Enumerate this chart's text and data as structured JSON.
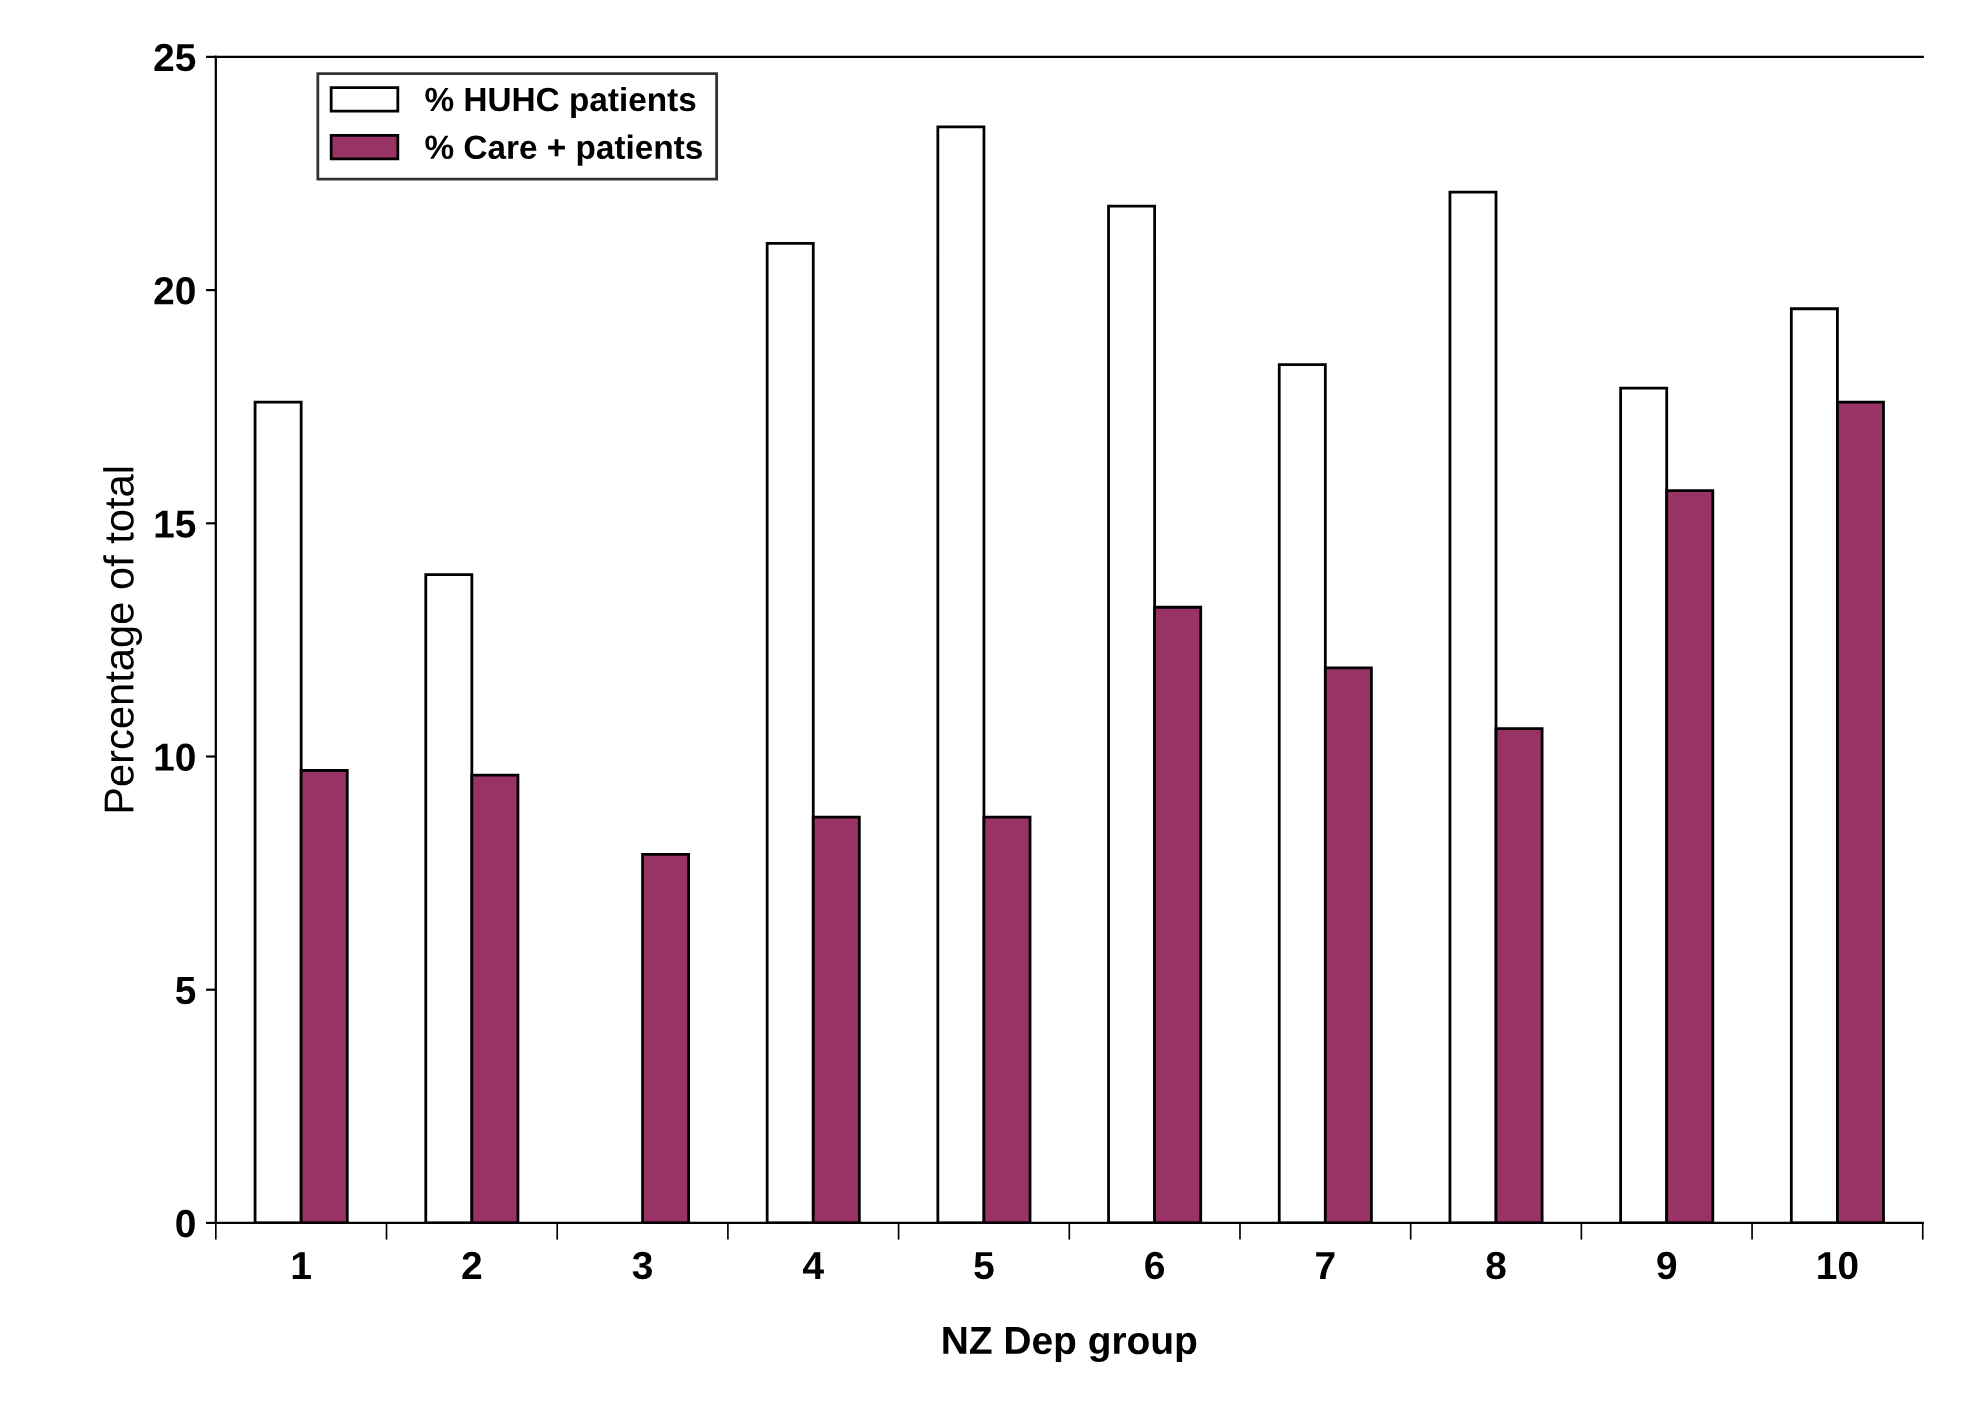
{
  "chart_data": {
    "type": "bar",
    "xlabel": "NZ Dep group",
    "ylabel": "Percentage of total",
    "categories": [
      "1",
      "2",
      "3",
      "4",
      "5",
      "6",
      "7",
      "8",
      "9",
      "10"
    ],
    "series": [
      {
        "name": "% HUHC patients",
        "color": "#ffffff",
        "values": [
          17.6,
          13.9,
          null,
          21.0,
          23.5,
          21.8,
          18.4,
          22.1,
          17.9,
          19.6
        ]
      },
      {
        "name": "% Care + patients",
        "color": "#993366",
        "values": [
          9.7,
          9.6,
          7.9,
          8.7,
          8.7,
          13.2,
          11.9,
          10.6,
          15.7,
          17.6
        ]
      }
    ],
    "ylim": [
      0,
      25
    ],
    "yticks": [
      0,
      5,
      10,
      15,
      20,
      25
    ],
    "grid": false,
    "legend": "top left"
  }
}
